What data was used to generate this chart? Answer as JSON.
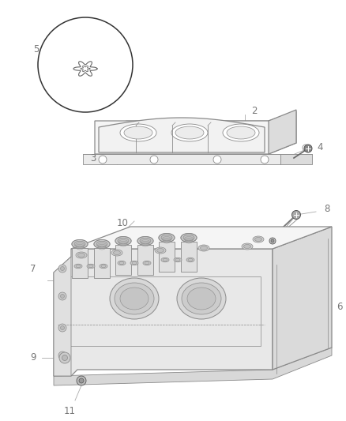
{
  "bg_color": "#ffffff",
  "line_color": "#8a8a8a",
  "dark_line": "#555555",
  "label_color": "#777777",
  "fill_light": "#f5f5f5",
  "fill_mid": "#ebebeb",
  "fill_dark": "#dcdcdc",
  "label_fontsize": 8.5,
  "fig_width": 4.38,
  "fig_height": 5.33
}
